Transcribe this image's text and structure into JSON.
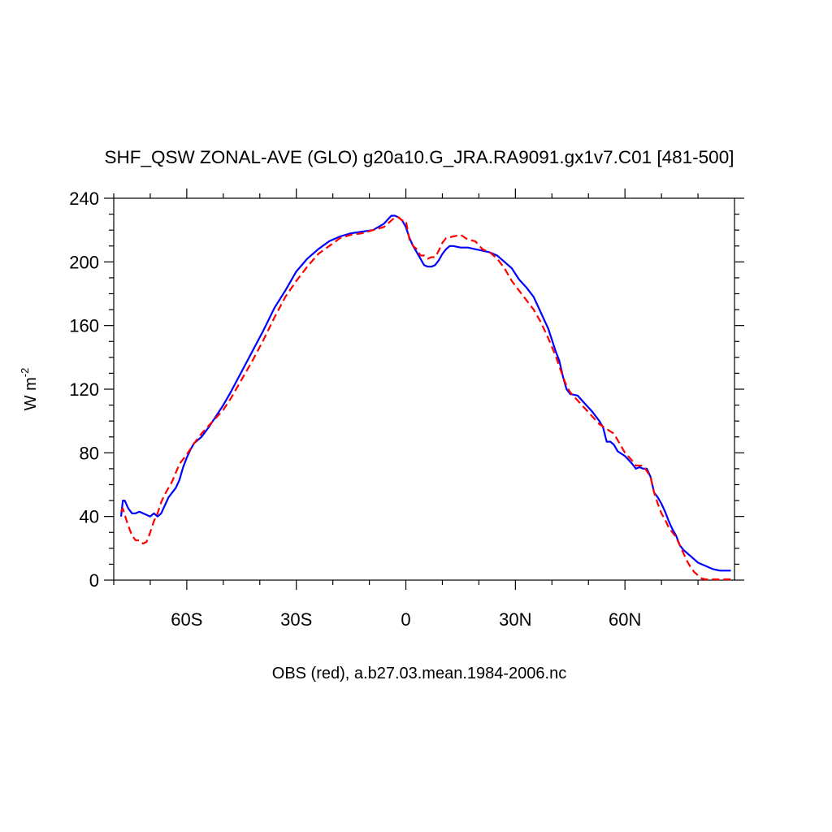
{
  "chart_data": {
    "type": "line",
    "title": "SHF_QSW ZONAL-AVE (GLO) g20a10.G_JRA.RA9091.gx1v7.C01 [481-500]",
    "xlabel": "OBS (red), a.b27.03.mean.1984-2006.nc",
    "ylabel_main": "W m",
    "ylabel_exp": "-2",
    "xlim": [
      -80,
      90
    ],
    "ylim": [
      0,
      240
    ],
    "x_ticks": [
      {
        "value": -60,
        "label": "60S"
      },
      {
        "value": -30,
        "label": "30S"
      },
      {
        "value": 0,
        "label": "0"
      },
      {
        "value": 30,
        "label": "30N"
      },
      {
        "value": 60,
        "label": "60N"
      }
    ],
    "y_ticks": [
      {
        "value": 0,
        "label": "0"
      },
      {
        "value": 40,
        "label": "40"
      },
      {
        "value": 80,
        "label": "80"
      },
      {
        "value": 120,
        "label": "120"
      },
      {
        "value": 160,
        "label": "160"
      },
      {
        "value": 200,
        "label": "200"
      },
      {
        "value": 240,
        "label": "240"
      }
    ],
    "series": [
      {
        "color": "#0000ff",
        "dash": "solid",
        "points": [
          [
            -78,
            40
          ],
          [
            -77.5,
            50
          ],
          [
            -77,
            50
          ],
          [
            -76,
            45
          ],
          [
            -75,
            42
          ],
          [
            -74,
            42
          ],
          [
            -73,
            43
          ],
          [
            -72,
            42
          ],
          [
            -70,
            40
          ],
          [
            -69,
            42
          ],
          [
            -68,
            40
          ],
          [
            -67,
            42
          ],
          [
            -66,
            47
          ],
          [
            -65,
            52
          ],
          [
            -63,
            58
          ],
          [
            -62,
            63
          ],
          [
            -61,
            71
          ],
          [
            -60,
            77
          ],
          [
            -59,
            82
          ],
          [
            -58,
            86
          ],
          [
            -56,
            90
          ],
          [
            -54,
            96
          ],
          [
            -52,
            103
          ],
          [
            -50,
            110
          ],
          [
            -48,
            118
          ],
          [
            -45,
            131
          ],
          [
            -42,
            144
          ],
          [
            -39,
            157
          ],
          [
            -36,
            171
          ],
          [
            -33,
            182
          ],
          [
            -30,
            194
          ],
          [
            -27,
            202
          ],
          [
            -24,
            208
          ],
          [
            -21,
            213
          ],
          [
            -18,
            216
          ],
          [
            -15,
            218
          ],
          [
            -12,
            219
          ],
          [
            -9,
            220
          ],
          [
            -6,
            224
          ],
          [
            -4,
            229
          ],
          [
            -3,
            229
          ],
          [
            -2,
            228
          ],
          [
            -1,
            226
          ],
          [
            0,
            222
          ],
          [
            1,
            215
          ],
          [
            2,
            210
          ],
          [
            3,
            206
          ],
          [
            4,
            202
          ],
          [
            5,
            198
          ],
          [
            6,
            197
          ],
          [
            7,
            197
          ],
          [
            8,
            198
          ],
          [
            9,
            201
          ],
          [
            10,
            205
          ],
          [
            11,
            208
          ],
          [
            12,
            210
          ],
          [
            13,
            210
          ],
          [
            15,
            209
          ],
          [
            17,
            209
          ],
          [
            19,
            208
          ],
          [
            21,
            207
          ],
          [
            23,
            206
          ],
          [
            25,
            204
          ],
          [
            27,
            200
          ],
          [
            29,
            196
          ],
          [
            31,
            189
          ],
          [
            33,
            184
          ],
          [
            35,
            178
          ],
          [
            37,
            168
          ],
          [
            39,
            158
          ],
          [
            41,
            144
          ],
          [
            42,
            138
          ],
          [
            43,
            128
          ],
          [
            44,
            120
          ],
          [
            45,
            117
          ],
          [
            47,
            116
          ],
          [
            49,
            111
          ],
          [
            51,
            106
          ],
          [
            53,
            100
          ],
          [
            54,
            96
          ],
          [
            55,
            87
          ],
          [
            56,
            87
          ],
          [
            57,
            85
          ],
          [
            58,
            81
          ],
          [
            60,
            78
          ],
          [
            62,
            73
          ],
          [
            63,
            70
          ],
          [
            64,
            71
          ],
          [
            65,
            70
          ],
          [
            66,
            70
          ],
          [
            67,
            65
          ],
          [
            68,
            55
          ],
          [
            69,
            52
          ],
          [
            70,
            48
          ],
          [
            71,
            43
          ],
          [
            72,
            37
          ],
          [
            73,
            32
          ],
          [
            74,
            28
          ],
          [
            75,
            22
          ],
          [
            76,
            19
          ],
          [
            77,
            17
          ],
          [
            78,
            15
          ],
          [
            80,
            11
          ],
          [
            82,
            9
          ],
          [
            84,
            7
          ],
          [
            86,
            6
          ],
          [
            88,
            6
          ],
          [
            89,
            6
          ]
        ]
      },
      {
        "color": "#ff0000",
        "dash": "dashed",
        "points": [
          [
            -78,
            43
          ],
          [
            -77.5,
            45
          ],
          [
            -77,
            41
          ],
          [
            -76,
            34
          ],
          [
            -75,
            28
          ],
          [
            -74,
            25
          ],
          [
            -73,
            25
          ],
          [
            -72,
            23
          ],
          [
            -71,
            24
          ],
          [
            -70,
            30
          ],
          [
            -69,
            37
          ],
          [
            -68,
            42
          ],
          [
            -67,
            49
          ],
          [
            -66,
            54
          ],
          [
            -64,
            62
          ],
          [
            -62,
            73
          ],
          [
            -60,
            79
          ],
          [
            -58,
            86
          ],
          [
            -56,
            92
          ],
          [
            -54,
            97
          ],
          [
            -52,
            102
          ],
          [
            -50,
            107
          ],
          [
            -48,
            114
          ],
          [
            -45,
            126
          ],
          [
            -42,
            138
          ],
          [
            -39,
            151
          ],
          [
            -36,
            165
          ],
          [
            -33,
            178
          ],
          [
            -30,
            188
          ],
          [
            -27,
            197
          ],
          [
            -24,
            205
          ],
          [
            -21,
            210
          ],
          [
            -18,
            215
          ],
          [
            -15,
            217
          ],
          [
            -12,
            218
          ],
          [
            -9,
            220
          ],
          [
            -6,
            222
          ],
          [
            -4,
            226
          ],
          [
            -3,
            228
          ],
          [
            -2,
            228
          ],
          [
            -1,
            226
          ],
          [
            0,
            226
          ],
          [
            1,
            214
          ],
          [
            2,
            210
          ],
          [
            3,
            208
          ],
          [
            4,
            204
          ],
          [
            5,
            204
          ],
          [
            6,
            202
          ],
          [
            7,
            203
          ],
          [
            8,
            203
          ],
          [
            9,
            207
          ],
          [
            10,
            212
          ],
          [
            11,
            215
          ],
          [
            13,
            216
          ],
          [
            15,
            217
          ],
          [
            17,
            214
          ],
          [
            19,
            213
          ],
          [
            21,
            208
          ],
          [
            23,
            206
          ],
          [
            25,
            202
          ],
          [
            27,
            196
          ],
          [
            29,
            188
          ],
          [
            31,
            182
          ],
          [
            33,
            176
          ],
          [
            35,
            170
          ],
          [
            37,
            162
          ],
          [
            39,
            152
          ],
          [
            41,
            141
          ],
          [
            43,
            128
          ],
          [
            44,
            122
          ],
          [
            45,
            118
          ],
          [
            47,
            113
          ],
          [
            49,
            108
          ],
          [
            51,
            103
          ],
          [
            53,
            98
          ],
          [
            55,
            95
          ],
          [
            57,
            92
          ],
          [
            58,
            88
          ],
          [
            60,
            80
          ],
          [
            62,
            75
          ],
          [
            63,
            72
          ],
          [
            65,
            72
          ],
          [
            67,
            65
          ],
          [
            68,
            55
          ],
          [
            69,
            48
          ],
          [
            70,
            42
          ],
          [
            71,
            38
          ],
          [
            72,
            33
          ],
          [
            74,
            27
          ],
          [
            75,
            22
          ],
          [
            76,
            17
          ],
          [
            77,
            12
          ],
          [
            78,
            8
          ],
          [
            79,
            5
          ],
          [
            80,
            3
          ],
          [
            81,
            1
          ],
          [
            82,
            0.5
          ],
          [
            84,
            0.5
          ],
          [
            86,
            0.5
          ],
          [
            88,
            0.5
          ],
          [
            89,
            0.5
          ]
        ]
      }
    ]
  }
}
